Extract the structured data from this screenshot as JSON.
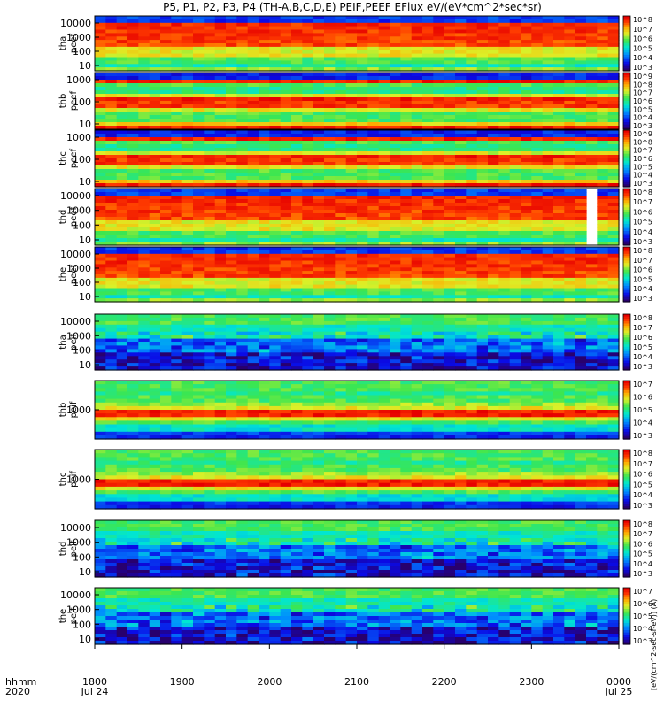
{
  "title": "P5, P1, P2, P3, P4 (TH-A,B,C,D,E) PEIF,PEEF EFlux eV/(eV*cm^2*sec*sr)",
  "colorbar_unit": "[eV/(cm^2-sec-sr-eV)] (A)",
  "x_axis": {
    "label_line1": "hhmm",
    "label_line2": "2020",
    "ticks": [
      "1800",
      "1900",
      "2000",
      "2100",
      "2200",
      "2300",
      "0000"
    ],
    "dates": [
      "Jul 24",
      "Jul 25"
    ]
  },
  "chart_data": {
    "type": "heatmap",
    "x_range": [
      "2020-07-24 18:00",
      "2020-07-25 00:00"
    ],
    "y_scale": "log",
    "colorscale": "rainbow",
    "panels": [
      {
        "probe": "tha",
        "product": "peef",
        "label1": "tha",
        "label2": "peef",
        "yticks": [
          "10000",
          "1000",
          "100",
          "10"
        ],
        "cbticks": [
          "10^8",
          "10^7",
          "10^6",
          "10^5",
          "10^4",
          "10^3"
        ],
        "pattern": "electron_hot"
      },
      {
        "probe": "thb",
        "product": "peef",
        "label1": "thb",
        "label2": "peef",
        "yticks": [
          "1000",
          "100",
          "10"
        ],
        "cbticks": [
          "10^9",
          "10^8",
          "10^7",
          "10^6",
          "10^5",
          "10^4",
          "10^3"
        ],
        "pattern": "electron_bands"
      },
      {
        "probe": "thc",
        "product": "peef",
        "label1": "thc",
        "label2": "peef",
        "yticks": [
          "1000",
          "100",
          "10"
        ],
        "cbticks": [
          "10^9",
          "10^8",
          "10^7",
          "10^6",
          "10^5",
          "10^4",
          "10^3"
        ],
        "pattern": "electron_bands"
      },
      {
        "probe": "thd",
        "product": "peef",
        "label1": "thd",
        "label2": "peef",
        "yticks": [
          "10000",
          "1000",
          "100",
          "10"
        ],
        "cbticks": [
          "10^8",
          "10^7",
          "10^6",
          "10^5",
          "10^4",
          "10^3"
        ],
        "pattern": "electron_hot_gap"
      },
      {
        "probe": "the",
        "product": "peef",
        "label1": "the",
        "label2": "peef",
        "yticks": [
          "10000",
          "1000",
          "100",
          "10"
        ],
        "cbticks": [
          "10^8",
          "10^7",
          "10^6",
          "10^5",
          "10^4",
          "10^3"
        ],
        "pattern": "electron_hot"
      },
      {
        "probe": "tha",
        "product": "peif",
        "label1": "tha",
        "label2": "peif",
        "yticks": [
          "10000",
          "1000",
          "100",
          "10"
        ],
        "cbticks": [
          "10^8",
          "10^7",
          "10^6",
          "10^5",
          "10^4",
          "10^3"
        ],
        "pattern": "ion_dim"
      },
      {
        "probe": "thb",
        "product": "peif",
        "label1": "thb",
        "label2": "peif",
        "yticks": [
          "1000"
        ],
        "cbticks": [
          "10^7",
          "10^6",
          "10^5",
          "10^4",
          "10^3"
        ],
        "pattern": "ion_bands"
      },
      {
        "probe": "thc",
        "product": "peif",
        "label1": "thc",
        "label2": "peif",
        "yticks": [
          "1000"
        ],
        "cbticks": [
          "10^8",
          "10^7",
          "10^6",
          "10^5",
          "10^4",
          "10^3"
        ],
        "pattern": "ion_bands"
      },
      {
        "probe": "thd",
        "product": "peif",
        "label1": "thd",
        "label2": "peif",
        "yticks": [
          "10000",
          "1000",
          "100",
          "10"
        ],
        "cbticks": [
          "10^8",
          "10^7",
          "10^6",
          "10^5",
          "10^4",
          "10^3"
        ],
        "pattern": "ion_dim"
      },
      {
        "probe": "the",
        "product": "peif",
        "label1": "the",
        "label2": "peif",
        "yticks": [
          "10000",
          "1000",
          "100",
          "10"
        ],
        "cbticks": [
          "10^7",
          "10^6",
          "10^5",
          "10^4",
          "10^3"
        ],
        "pattern": "ion_dim"
      }
    ]
  }
}
